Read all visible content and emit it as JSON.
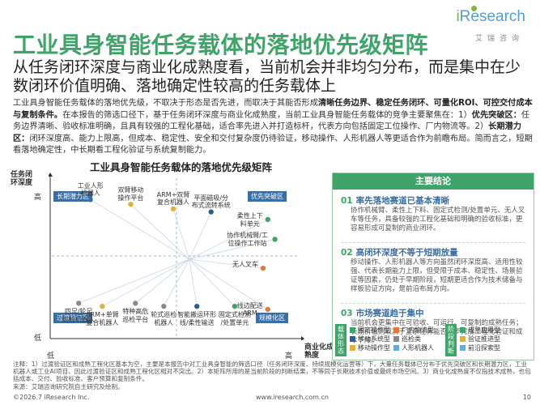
{
  "header": {
    "title": "工业具身智能任务载体的落地优先级矩阵",
    "logo_brand_i": "i",
    "logo_brand": "Research",
    "logo_cn": "艾瑞咨询"
  },
  "subtitle": "从任务闭环深度与商业化成熟度看，当前机会并非均匀分布，而是集中在少数闭环价值明确、落地确定性较高的任务载体上",
  "intro": {
    "p1": "工业具身智能任务载体的落地优先级，不取决于形态是否先进，而取决于其能否形成",
    "p1_bold": "清晰任务边界、稳定任务闭环、可量化ROI、可控交付成本与复制条件。",
    "p2": "在本报告的筛选口径下，基于任务闭环深度与商业化成熟度，当前工业具身智能任务载体的竞争主要聚焦在：1）",
    "p2_bold1": "优先突破区：",
    "p3": "任务边界清晰、验收标准明确，且具有较强的工程化基础，适合率先进入并打造标杆，代表方向包括固定工位操作、厂内物流等。2）",
    "p3_bold2": "长期潜力区：",
    "p4": "闭环深度高、能力上限高，但成本、稳定性、安全和交付复杂度仍待验证，移动操作、人形机器人等更适合作为前瞻布局。简而言之，短期看落地确定性，中长期看工程化验证与系统复制能力。"
  },
  "chart_data": {
    "type": "scatter",
    "title": "工业具身智能任务载体的落地优先级矩阵",
    "ylabel": "任务闭环深度",
    "xlabel": "商业化成熟度",
    "y_ticks": [
      "高",
      "低"
    ],
    "x_ticks": [
      "低",
      "高"
    ],
    "zones": [
      "长期潜力区",
      "优先突破区",
      "过渡验证区",
      "规模化区"
    ],
    "points": [
      {
        "label": "工业人形机器人",
        "category": "人形机器人",
        "x": 0.15,
        "y": 0.88
      },
      {
        "label": "双臂移动操作平台",
        "category": "移动操作",
        "x": 0.32,
        "y": 0.85
      },
      {
        "label": "ARM+双臂复合机器人",
        "category": "移动操作",
        "x": 0.5,
        "y": 0.82
      },
      {
        "label": "平面磁吸/分布式流转系统",
        "category": "移动系统",
        "x": 0.66,
        "y": 0.8
      },
      {
        "label": "柔性上下料单元",
        "category": "固定操作",
        "x": 0.9,
        "y": 0.75
      },
      {
        "label": "协作机械臂/工位操作工作站",
        "category": "固定操作",
        "x": 0.93,
        "y": 0.62
      },
      {
        "label": "无人叉车",
        "category": "厂内物流",
        "x": 0.88,
        "y": 0.43
      },
      {
        "label": "四足/轮足巡检机器人",
        "category": "巡检",
        "x": 0.1,
        "y": 0.2
      },
      {
        "label": "ARM+单臂复合机器人",
        "category": "移动操作",
        "x": 0.2,
        "y": 0.18
      },
      {
        "label": "特种高危巡检平台",
        "category": "巡检",
        "x": 0.34,
        "y": 0.2
      },
      {
        "label": "轮式巡检机器人",
        "category": "巡检",
        "x": 0.46,
        "y": 0.18
      },
      {
        "label": "智能搬运环形线/柔性输送",
        "category": "移动系统",
        "x": 0.6,
        "y": 0.18
      },
      {
        "label": "固定式检测/处置单元",
        "category": "固定操作",
        "x": 0.76,
        "y": 0.18
      },
      {
        "label": "线边配送ARM",
        "category": "厂内物流",
        "x": 0.9,
        "y": 0.16
      }
    ]
  },
  "panel": {
    "head": "主要结论",
    "items": [
      {
        "num": "01",
        "title": "率先落地赛道已基本清晰",
        "text": "协作机械臂、柔性上下料、固定式检测/处置单元、无人叉车等任务，具备较强的工程化基础和明确的验收标准，更容易形成可复制的商业闭环。"
      },
      {
        "num": "02",
        "title": "高闭环深度不等于短期放量",
        "text": "移动操作、人形机器人等方向虽然闭环深度高、适用性较强、代表长期能力上限，但受限于成本、稳定性、场景验证等因素，仍处于早期阶段，短期更适合作为技术储备与样板验证方向，是前沿布局方向。"
      },
      {
        "num": "03",
        "title": "市场赛道趋于集中",
        "text": "当前机会更集中在可验收、可运行、可复制的成熟任务；长期价值则取决于复杂任务能否逐步完成工程化验证和成本下降。"
      }
    ]
  },
  "legend_left": {
    "side": "载体形态",
    "items": [
      {
        "label": "固定操作型",
        "color": "#3fa46a"
      },
      {
        "label": "厂内物流型",
        "color": "#e07a3a"
      },
      {
        "label": "移动系统型",
        "color": "#2f5d8c"
      },
      {
        "label": "巡检类",
        "color": "#8a8a8a"
      },
      {
        "label": "移动操作型",
        "color": "#e0b13a"
      },
      {
        "label": "人形机器人",
        "color": "#6aa8d8"
      }
    ]
  },
  "legend_right": {
    "side": "阶段判断",
    "items": [
      {
        "label": "成熟应用型",
        "color": "#3fa46a"
      },
      {
        "label": "验证推进型",
        "color": "#e0b13a"
      },
      {
        "label": "前沿探索型",
        "color": "#6aa8d8"
      }
    ]
  },
  "notes": "注释：1）过渡验证区和成熟工程化区基本为空，主要是本报告中对工业具身智能的筛选口径（任务闭环深度、持续规模化运营等）下，大量任务载体已分布于优先突破区和长期潜力区，工业机器人或工业AI项目、因此过渡验证区和成熟工程化区相对不突出。2）本矩阵所用的是当前阶段的判断结果，不等同于长期技术价值或最终市场空间。3）商业化成熟度不仅指技术成熟，也包括成本、交付、验收标准、客户预算和复制条件。",
  "source": "来源：艾瑞咨询研究院自主研究及绘制。",
  "footer": {
    "copyright": "©2026.7 iResearch Inc.",
    "url": "www.iresearch.com.cn",
    "page": "10"
  }
}
